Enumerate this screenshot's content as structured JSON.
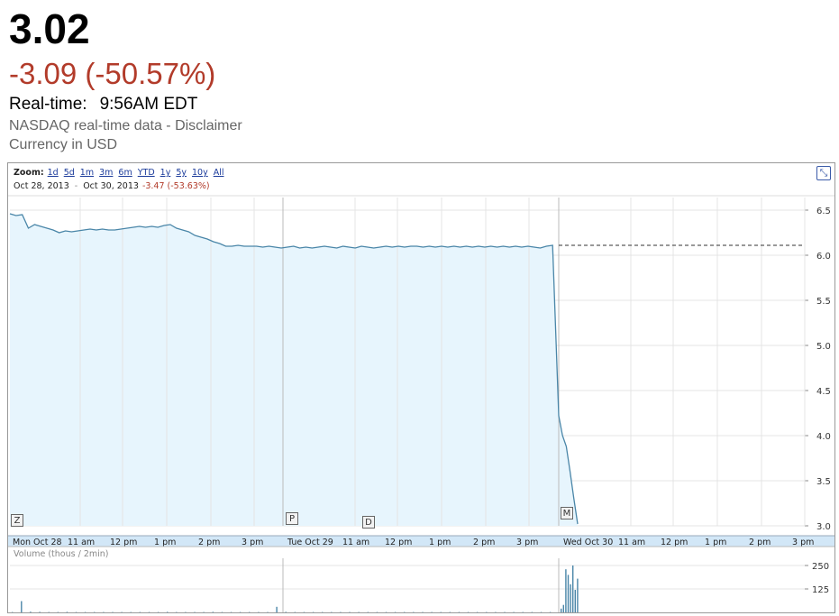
{
  "quote": {
    "price": "3.02",
    "change": "-3.09 (-50.57%)",
    "realtime_label": "Real-time:",
    "realtime_time": "9:56AM EDT",
    "data_source": "NASDAQ real-time data",
    "separator": " - ",
    "disclaimer_link": "Disclaimer",
    "currency": "Currency in USD"
  },
  "zoom": {
    "label": "Zoom:",
    "options": [
      "1d",
      "5d",
      "1m",
      "3m",
      "6m",
      "YTD",
      "1y",
      "5y",
      "10y",
      "All"
    ]
  },
  "range": {
    "start": "Oct 28, 2013",
    "dash": "-",
    "end": "Oct 30, 2013",
    "change": "-3.47 (-53.63%)"
  },
  "volume_label": "Volume (thous / 2min)",
  "flags": [
    "Z",
    "P",
    "D",
    "M"
  ],
  "colors": {
    "line": "#4a86a8",
    "fill": "#e7f5fd",
    "axis_band": "#d2e7f7",
    "grid": "#e4e4e4",
    "negative": "#b23b2a"
  },
  "chart_data": [
    {
      "type": "area",
      "title": "",
      "ylim": [
        3.0,
        6.5
      ],
      "yticks": [
        "6.5",
        "6.0",
        "5.5",
        "5.0",
        "4.5",
        "4.0",
        "3.5",
        "3.0"
      ],
      "xticks": [
        "Mon Oct 28",
        "11 am",
        "12 pm",
        "1 pm",
        "2 pm",
        "3 pm",
        "Tue Oct 29",
        "11 am",
        "12 pm",
        "1 pm",
        "2 pm",
        "3 pm",
        "Wed Oct 30",
        "11 am",
        "12 pm",
        "1 pm",
        "2 pm",
        "3 pm"
      ],
      "previous_close": 6.11,
      "series": [
        {
          "values": [
            6.46,
            6.44,
            6.45,
            6.3,
            6.34,
            6.32,
            6.3,
            6.28,
            6.25,
            6.27,
            6.26,
            6.27,
            6.28,
            6.29,
            6.28,
            6.29,
            6.28,
            6.28,
            6.29,
            6.3,
            6.31,
            6.32,
            6.31,
            6.32,
            6.31,
            6.33,
            6.34,
            6.3,
            6.28,
            6.26,
            6.22,
            6.2,
            6.18,
            6.15,
            6.13,
            6.1,
            6.1,
            6.11,
            6.1,
            6.1,
            6.1,
            6.09,
            6.1,
            6.09,
            6.08,
            6.09,
            6.1,
            6.08,
            6.09,
            6.08,
            6.09,
            6.1,
            6.09,
            6.08,
            6.1,
            6.09,
            6.08,
            6.1,
            6.09,
            6.08,
            6.09,
            6.1,
            6.09,
            6.1,
            6.09,
            6.1,
            6.1,
            6.09,
            6.1,
            6.09,
            6.1,
            6.09,
            6.1,
            6.09,
            6.1,
            6.09,
            6.1,
            6.09,
            6.1,
            6.09,
            6.1,
            6.09,
            6.1,
            6.09,
            6.1,
            6.09,
            6.08,
            6.1,
            6.11,
            4.22,
            4.0,
            3.88,
            3.6,
            3.3,
            3.02
          ]
        }
      ]
    },
    {
      "type": "bar",
      "title": "Volume (thous / 2min)",
      "ylim": [
        0,
        250
      ],
      "yticks": [
        "250",
        "125"
      ],
      "values": [
        2,
        60,
        4,
        3,
        2,
        2,
        3,
        2,
        2,
        2,
        2,
        2,
        2,
        2,
        2,
        2,
        2,
        3,
        2,
        2,
        2,
        2,
        3,
        2,
        2,
        2,
        2,
        2,
        2,
        30,
        3,
        2,
        2,
        2,
        2,
        2,
        2,
        2,
        2,
        2,
        2,
        2,
        2,
        2,
        2,
        2,
        2,
        2,
        2,
        2,
        2,
        2,
        2,
        2,
        2,
        2,
        2,
        2,
        2,
        2,
        20,
        40,
        230,
        200,
        150,
        250,
        120,
        180
      ]
    }
  ]
}
